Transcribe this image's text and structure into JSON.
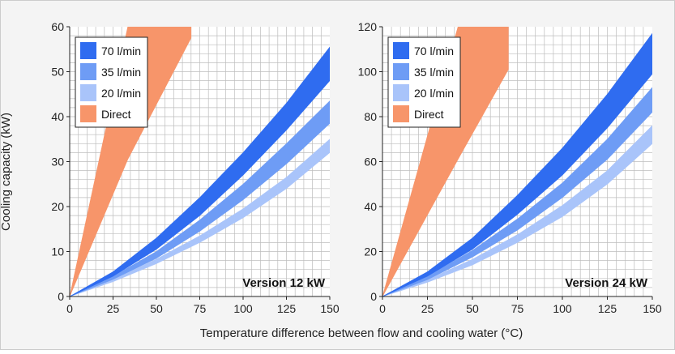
{
  "figure": {
    "ylabel": "Cooling capacity (kW)",
    "xlabel": "Temperature difference between flow and cooling water (°C)"
  },
  "colors": {
    "background": "#f4f4f4",
    "plot_background": "#ffffff",
    "grid": "#bdbdbd",
    "band_70": "#2f6cf0",
    "band_35": "#6e9cf5",
    "band_20": "#a9c4fa",
    "direct": "#f7956a"
  },
  "chart_data": [
    {
      "type": "area",
      "title": "Version 12 kW",
      "xlabel": "Temperature difference between flow and cooling water (°C)",
      "ylabel": "Cooling capacity (kW)",
      "xlim": [
        0,
        150
      ],
      "ylim": [
        0,
        60
      ],
      "xticks": [
        0,
        25,
        50,
        75,
        100,
        125,
        150
      ],
      "yticks": [
        0,
        10,
        20,
        30,
        40,
        50,
        60
      ],
      "grid": true,
      "legend_position": "top-left",
      "legend": [
        "70 l/min",
        "35 l/min",
        "20 l/min",
        "Direct"
      ],
      "series": [
        {
          "name": "Direct",
          "color": "#f7956a",
          "x": [
            0,
            33.5,
            70,
            70
          ],
          "upper": [
            0,
            60,
            60,
            60
          ],
          "lower": [
            0,
            30.5,
            57.5,
            60
          ]
        },
        {
          "name": "70 l/min",
          "color": "#2f6cf0",
          "x": [
            0,
            25,
            50,
            75,
            100,
            125,
            150
          ],
          "upper": [
            0,
            5.5,
            13,
            22,
            32,
            43,
            55.5
          ],
          "lower": [
            0,
            4.5,
            10.5,
            18,
            27,
            37,
            48
          ]
        },
        {
          "name": "35 l/min",
          "color": "#6e9cf5",
          "x": [
            0,
            25,
            50,
            75,
            100,
            125,
            150
          ],
          "upper": [
            0,
            4.5,
            10,
            17,
            25,
            34,
            43.5
          ],
          "lower": [
            0,
            3.8,
            8.5,
            14.5,
            21.5,
            29.5,
            38.5
          ]
        },
        {
          "name": "20 l/min",
          "color": "#a9c4fa",
          "x": [
            0,
            25,
            50,
            75,
            100,
            125,
            150
          ],
          "upper": [
            0,
            3.8,
            8.3,
            13.5,
            19.5,
            26.5,
            35
          ],
          "lower": [
            0,
            3.3,
            7.3,
            12,
            17.5,
            24,
            32
          ]
        }
      ]
    },
    {
      "type": "area",
      "title": "Version 24 kW",
      "xlabel": "Temperature difference between flow and cooling water (°C)",
      "ylabel": "",
      "xlim": [
        0,
        150
      ],
      "ylim": [
        0,
        120
      ],
      "xticks": [
        0,
        25,
        50,
        75,
        100,
        125,
        150
      ],
      "yticks": [
        0,
        20,
        40,
        60,
        80,
        100,
        120
      ],
      "grid": true,
      "legend_position": "top-left",
      "legend": [
        "70 l/min",
        "35 l/min",
        "20 l/min",
        "Direct"
      ],
      "series": [
        {
          "name": "Direct",
          "color": "#f7956a",
          "x": [
            0,
            42,
            70,
            70
          ],
          "upper": [
            0,
            120,
            120,
            120
          ],
          "lower": [
            0,
            61,
            101,
            120
          ]
        },
        {
          "name": "70 l/min",
          "color": "#2f6cf0",
          "x": [
            0,
            25,
            50,
            75,
            100,
            125,
            150
          ],
          "upper": [
            0,
            11,
            26,
            45,
            66,
            90,
            117
          ],
          "lower": [
            0,
            9,
            21,
            36.5,
            54,
            75,
            99
          ]
        },
        {
          "name": "35 l/min",
          "color": "#6e9cf5",
          "x": [
            0,
            25,
            50,
            75,
            100,
            125,
            150
          ],
          "upper": [
            0,
            9,
            20.5,
            34.5,
            50.5,
            70,
            93
          ],
          "lower": [
            0,
            7.5,
            17.5,
            29.5,
            44,
            61,
            82
          ]
        },
        {
          "name": "20 l/min",
          "color": "#a9c4fa",
          "x": [
            0,
            25,
            50,
            75,
            100,
            125,
            150
          ],
          "upper": [
            0,
            7.5,
            16.5,
            27.5,
            40.5,
            56,
            76
          ],
          "lower": [
            0,
            6.3,
            14,
            24,
            35.5,
            50,
            68
          ]
        }
      ]
    }
  ]
}
